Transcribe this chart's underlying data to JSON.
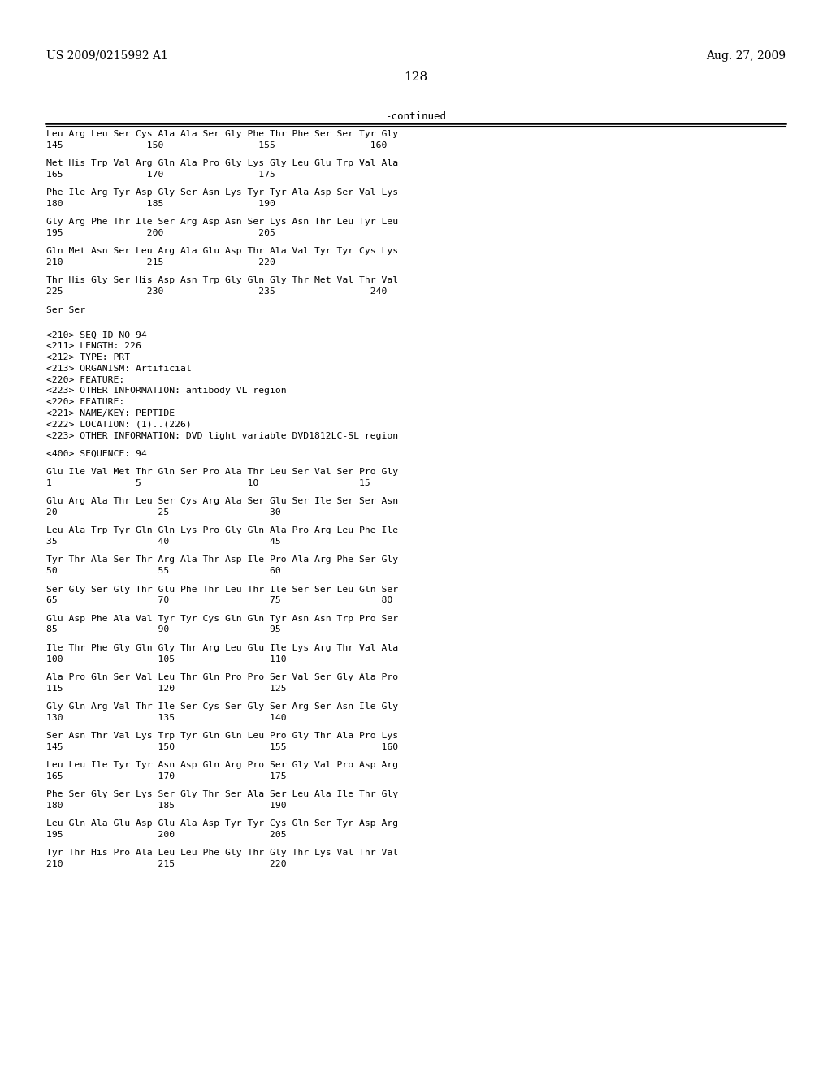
{
  "header_left": "US 2009/0215992 A1",
  "header_right": "Aug. 27, 2009",
  "page_number": "128",
  "continued_label": "-continued",
  "background_color": "#ffffff",
  "text_color": "#000000",
  "body_lines": [
    [
      "Leu Arg Leu Ser Cys Ala Ala Ser Gly Phe Thr Phe Ser Ser Tyr Gly",
      "seq"
    ],
    [
      "145               150                 155                 160",
      "num"
    ],
    [
      "",
      "gap"
    ],
    [
      "Met His Trp Val Arg Gln Ala Pro Gly Lys Gly Leu Glu Trp Val Ala",
      "seq"
    ],
    [
      "165               170                 175",
      "num"
    ],
    [
      "",
      "gap"
    ],
    [
      "Phe Ile Arg Tyr Asp Gly Ser Asn Lys Tyr Tyr Ala Asp Ser Val Lys",
      "seq"
    ],
    [
      "180               185                 190",
      "num"
    ],
    [
      "",
      "gap"
    ],
    [
      "Gly Arg Phe Thr Ile Ser Arg Asp Asn Ser Lys Asn Thr Leu Tyr Leu",
      "seq"
    ],
    [
      "195               200                 205",
      "num"
    ],
    [
      "",
      "gap"
    ],
    [
      "Gln Met Asn Ser Leu Arg Ala Glu Asp Thr Ala Val Tyr Tyr Cys Lys",
      "seq"
    ],
    [
      "210               215                 220",
      "num"
    ],
    [
      "",
      "gap"
    ],
    [
      "Thr His Gly Ser His Asp Asn Trp Gly Gln Gly Thr Met Val Thr Val",
      "seq"
    ],
    [
      "225               230                 235                 240",
      "num"
    ],
    [
      "",
      "gap"
    ],
    [
      "Ser Ser",
      "seq"
    ],
    [
      "",
      "gap"
    ],
    [
      "",
      "gap"
    ],
    [
      "<210> SEQ ID NO 94",
      "meta"
    ],
    [
      "<211> LENGTH: 226",
      "meta"
    ],
    [
      "<212> TYPE: PRT",
      "meta"
    ],
    [
      "<213> ORGANISM: Artificial",
      "meta"
    ],
    [
      "<220> FEATURE:",
      "meta"
    ],
    [
      "<223> OTHER INFORMATION: antibody VL region",
      "meta"
    ],
    [
      "<220> FEATURE:",
      "meta"
    ],
    [
      "<221> NAME/KEY: PEPTIDE",
      "meta"
    ],
    [
      "<222> LOCATION: (1)..(226)",
      "meta"
    ],
    [
      "<223> OTHER INFORMATION: DVD light variable DVD1812LC-SL region",
      "meta"
    ],
    [
      "",
      "gap"
    ],
    [
      "<400> SEQUENCE: 94",
      "meta"
    ],
    [
      "",
      "gap"
    ],
    [
      "Glu Ile Val Met Thr Gln Ser Pro Ala Thr Leu Ser Val Ser Pro Gly",
      "seq"
    ],
    [
      "1               5                   10                  15",
      "num"
    ],
    [
      "",
      "gap"
    ],
    [
      "Glu Arg Ala Thr Leu Ser Cys Arg Ala Ser Glu Ser Ile Ser Ser Asn",
      "seq"
    ],
    [
      "20                  25                  30",
      "num"
    ],
    [
      "",
      "gap"
    ],
    [
      "Leu Ala Trp Tyr Gln Gln Lys Pro Gly Gln Ala Pro Arg Leu Phe Ile",
      "seq"
    ],
    [
      "35                  40                  45",
      "num"
    ],
    [
      "",
      "gap"
    ],
    [
      "Tyr Thr Ala Ser Thr Arg Ala Thr Asp Ile Pro Ala Arg Phe Ser Gly",
      "seq"
    ],
    [
      "50                  55                  60",
      "num"
    ],
    [
      "",
      "gap"
    ],
    [
      "Ser Gly Ser Gly Thr Glu Phe Thr Leu Thr Ile Ser Ser Leu Gln Ser",
      "seq"
    ],
    [
      "65                  70                  75                  80",
      "num"
    ],
    [
      "",
      "gap"
    ],
    [
      "Glu Asp Phe Ala Val Tyr Tyr Cys Gln Gln Tyr Asn Asn Trp Pro Ser",
      "seq"
    ],
    [
      "85                  90                  95",
      "num"
    ],
    [
      "",
      "gap"
    ],
    [
      "Ile Thr Phe Gly Gln Gly Thr Arg Leu Glu Ile Lys Arg Thr Val Ala",
      "seq"
    ],
    [
      "100                 105                 110",
      "num"
    ],
    [
      "",
      "gap"
    ],
    [
      "Ala Pro Gln Ser Val Leu Thr Gln Pro Pro Ser Val Ser Gly Ala Pro",
      "seq"
    ],
    [
      "115                 120                 125",
      "num"
    ],
    [
      "",
      "gap"
    ],
    [
      "Gly Gln Arg Val Thr Ile Ser Cys Ser Gly Ser Arg Ser Asn Ile Gly",
      "seq"
    ],
    [
      "130                 135                 140",
      "num"
    ],
    [
      "",
      "gap"
    ],
    [
      "Ser Asn Thr Val Lys Trp Tyr Gln Gln Leu Pro Gly Thr Ala Pro Lys",
      "seq"
    ],
    [
      "145                 150                 155                 160",
      "num"
    ],
    [
      "",
      "gap"
    ],
    [
      "Leu Leu Ile Tyr Tyr Asn Asp Gln Arg Pro Ser Gly Val Pro Asp Arg",
      "seq"
    ],
    [
      "165                 170                 175",
      "num"
    ],
    [
      "",
      "gap"
    ],
    [
      "Phe Ser Gly Ser Lys Ser Gly Thr Ser Ala Ser Leu Ala Ile Thr Gly",
      "seq"
    ],
    [
      "180                 185                 190",
      "num"
    ],
    [
      "",
      "gap"
    ],
    [
      "Leu Gln Ala Glu Asp Glu Ala Asp Tyr Tyr Cys Gln Ser Tyr Asp Arg",
      "seq"
    ],
    [
      "195                 200                 205",
      "num"
    ],
    [
      "",
      "gap"
    ],
    [
      "Tyr Thr His Pro Ala Leu Leu Phe Gly Thr Gly Thr Lys Val Thr Val",
      "seq"
    ],
    [
      "210                 215                 220",
      "num"
    ]
  ]
}
